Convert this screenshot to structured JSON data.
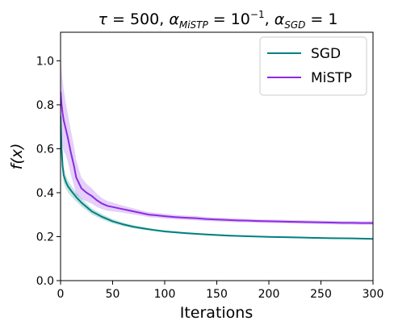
{
  "chart_data": {
    "type": "line",
    "title": {
      "prefix_sym": "τ",
      "prefix_val": " = 500, ",
      "alpha1_sym": "α",
      "alpha1_sub": "MiSTP",
      "alpha1_val": " = 10",
      "alpha1_exp": "−1",
      "sep": ", ",
      "alpha2_sym": "α",
      "alpha2_sub": "SGD",
      "alpha2_val": " = 1"
    },
    "xlabel": "Iterations",
    "ylabel": "f(x)",
    "xlim": [
      0,
      300
    ],
    "ylim": [
      0,
      1.13
    ],
    "xticks": [
      0,
      50,
      100,
      150,
      200,
      250,
      300
    ],
    "yticks": [
      0.0,
      0.2,
      0.4,
      0.6,
      0.8,
      1.0
    ],
    "ytick_labels": [
      "0.0",
      "0.2",
      "0.4",
      "0.6",
      "0.8",
      "1.0"
    ],
    "legend_position": "top-right",
    "series": [
      {
        "name": "SGD",
        "color": "#008080",
        "x": [
          0,
          1,
          2,
          3,
          5,
          7,
          10,
          15,
          20,
          25,
          30,
          40,
          50,
          60,
          70,
          80,
          90,
          100,
          120,
          140,
          160,
          180,
          200,
          220,
          240,
          260,
          280,
          300
        ],
        "y": [
          0.75,
          0.6,
          0.52,
          0.48,
          0.45,
          0.43,
          0.41,
          0.38,
          0.355,
          0.335,
          0.315,
          0.29,
          0.27,
          0.256,
          0.245,
          0.237,
          0.23,
          0.224,
          0.216,
          0.21,
          0.205,
          0.202,
          0.199,
          0.197,
          0.195,
          0.193,
          0.192,
          0.19
        ],
        "band": [
          0.05,
          0.045,
          0.04,
          0.035,
          0.03,
          0.028,
          0.025,
          0.02,
          0.018,
          0.016,
          0.014,
          0.012,
          0.01,
          0.008,
          0.007,
          0.006,
          0.005,
          0.005,
          0.004,
          0.004,
          0.004,
          0.003,
          0.003,
          0.003,
          0.003,
          0.003,
          0.003,
          0.003
        ]
      },
      {
        "name": "MiSTP",
        "color": "#8a2be2",
        "x": [
          0,
          1,
          2,
          3,
          5,
          7,
          10,
          13,
          15,
          18,
          20,
          25,
          30,
          35,
          40,
          45,
          50,
          55,
          60,
          65,
          70,
          75,
          80,
          85,
          90,
          100,
          110,
          120,
          130,
          140,
          150,
          160,
          170,
          180,
          190,
          200,
          210,
          220,
          230,
          240,
          250,
          260,
          270,
          280,
          290,
          300
        ],
        "y": [
          0.86,
          0.8,
          0.76,
          0.73,
          0.69,
          0.65,
          0.58,
          0.52,
          0.47,
          0.44,
          0.42,
          0.4,
          0.385,
          0.365,
          0.35,
          0.34,
          0.335,
          0.33,
          0.325,
          0.32,
          0.315,
          0.31,
          0.305,
          0.3,
          0.298,
          0.293,
          0.289,
          0.286,
          0.284,
          0.28,
          0.278,
          0.276,
          0.274,
          0.273,
          0.271,
          0.27,
          0.269,
          0.268,
          0.267,
          0.266,
          0.265,
          0.264,
          0.263,
          0.263,
          0.262,
          0.262
        ],
        "band": [
          0.18,
          0.16,
          0.15,
          0.14,
          0.12,
          0.11,
          0.1,
          0.09,
          0.08,
          0.06,
          0.05,
          0.04,
          0.035,
          0.03,
          0.025,
          0.022,
          0.02,
          0.018,
          0.016,
          0.015,
          0.014,
          0.013,
          0.012,
          0.012,
          0.011,
          0.011,
          0.01,
          0.01,
          0.01,
          0.009,
          0.009,
          0.009,
          0.009,
          0.008,
          0.008,
          0.008,
          0.008,
          0.008,
          0.008,
          0.008,
          0.008,
          0.008,
          0.008,
          0.008,
          0.008,
          0.008
        ]
      }
    ]
  }
}
